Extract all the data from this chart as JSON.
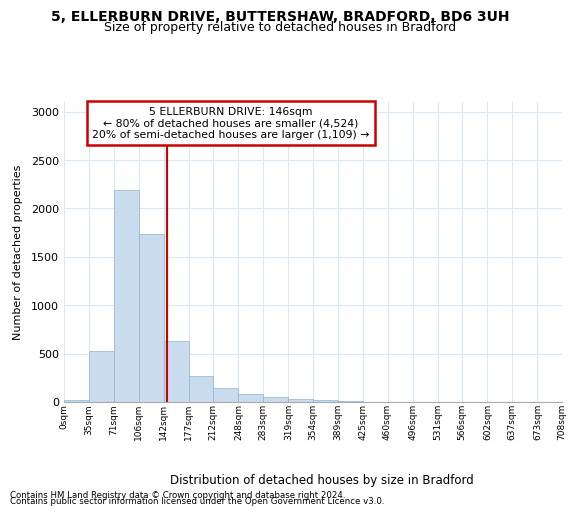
{
  "title_line1": "5, ELLERBURN DRIVE, BUTTERSHAW, BRADFORD, BD6 3UH",
  "title_line2": "Size of property relative to detached houses in Bradford",
  "xlabel": "Distribution of detached houses by size in Bradford",
  "ylabel": "Number of detached properties",
  "bin_edges": [
    0,
    35,
    71,
    106,
    142,
    177,
    212,
    248,
    283,
    319,
    354,
    389,
    425,
    460,
    496,
    531,
    566,
    602,
    637,
    673,
    708
  ],
  "bar_heights": [
    25,
    525,
    2190,
    1740,
    635,
    270,
    145,
    80,
    50,
    35,
    20,
    10,
    5,
    5,
    3,
    2,
    1,
    1,
    1,
    1
  ],
  "bar_color": "#c8dced",
  "bar_edgecolor": "#8db4d0",
  "grid_color": "#d8e8f4",
  "plot_bg_color": "#ffffff",
  "vline_x": 146,
  "vline_color": "#cc0000",
  "annotation_line1": "5 ELLERBURN DRIVE: 146sqm",
  "annotation_line2": "← 80% of detached houses are smaller (4,524)",
  "annotation_line3": "20% of semi-detached houses are larger (1,109) →",
  "annotation_box_edgecolor": "#cc0000",
  "ylim": [
    0,
    3100
  ],
  "yticks": [
    0,
    500,
    1000,
    1500,
    2000,
    2500,
    3000
  ],
  "tick_labels": [
    "0sqm",
    "35sqm",
    "71sqm",
    "106sqm",
    "142sqm",
    "177sqm",
    "212sqm",
    "248sqm",
    "283sqm",
    "319sqm",
    "354sqm",
    "389sqm",
    "425sqm",
    "460sqm",
    "496sqm",
    "531sqm",
    "566sqm",
    "602sqm",
    "637sqm",
    "673sqm",
    "708sqm"
  ],
  "footnote1": "Contains HM Land Registry data © Crown copyright and database right 2024.",
  "footnote2": "Contains public sector information licensed under the Open Government Licence v3.0.",
  "title1_fontsize": 10,
  "title2_fontsize": 9
}
